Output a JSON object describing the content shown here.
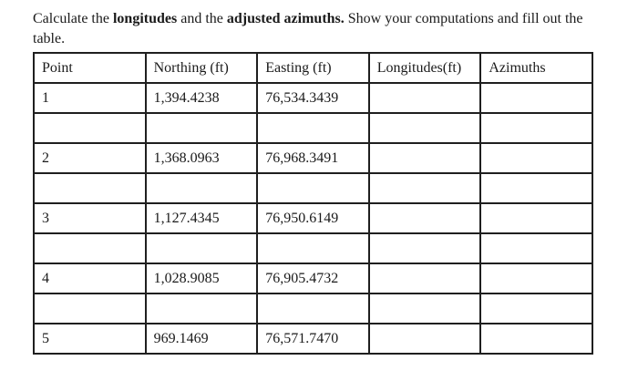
{
  "page": {
    "background": "#ffffff",
    "text_color": "#1a1a1a",
    "table_border_color": "#1f1f1f"
  },
  "instructions": {
    "part1": "Calculate the ",
    "bold1": "longitudes",
    "part2": " and the ",
    "bold2": "adjusted azimuths.",
    "part3": " Show your computations and fill out the",
    "part4": "table."
  },
  "table": {
    "headers": [
      "Point",
      "Northing (ft)",
      "Easting (ft)",
      "Longitudes(ft)",
      "Azimuths"
    ],
    "rows": [
      {
        "point": "1",
        "northing": "1,394.4238",
        "easting": "76,534.3439",
        "longitudes": "",
        "azimuths": ""
      },
      {
        "point": "",
        "northing": "",
        "easting": "",
        "longitudes": "",
        "azimuths": ""
      },
      {
        "point": "2",
        "northing": "1,368.0963",
        "easting": "76,968.3491",
        "longitudes": "",
        "azimuths": ""
      },
      {
        "point": "",
        "northing": "",
        "easting": "",
        "longitudes": "",
        "azimuths": ""
      },
      {
        "point": "3",
        "northing": "1,127.4345",
        "easting": "76,950.6149",
        "longitudes": "",
        "azimuths": ""
      },
      {
        "point": "",
        "northing": "",
        "easting": "",
        "longitudes": "",
        "azimuths": ""
      },
      {
        "point": "4",
        "northing": "1,028.9085",
        "easting": "76,905.4732",
        "longitudes": "",
        "azimuths": ""
      },
      {
        "point": "",
        "northing": "",
        "easting": "",
        "longitudes": "",
        "azimuths": ""
      },
      {
        "point": "5",
        "northing": "969.1469",
        "easting": "76,571.7470",
        "longitudes": "",
        "azimuths": ""
      }
    ]
  }
}
